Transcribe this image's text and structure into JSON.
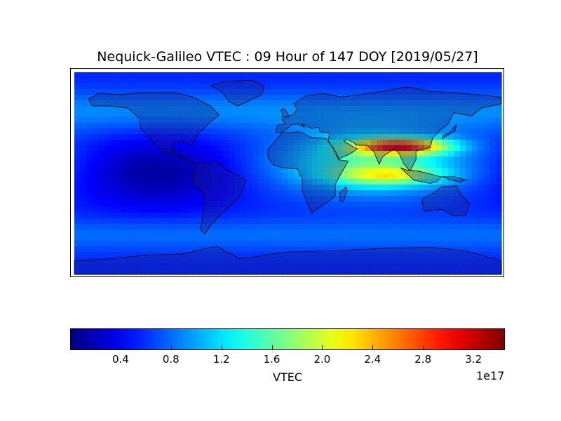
{
  "title": "Nequick-Galileo VTEC : 09 Hour of 147 DOY [2019/05/27]",
  "colormap": "jet",
  "colorbar": {
    "label": "VTEC",
    "exponent_label": "1e17",
    "tick_labels": [
      "0.4",
      "0.8",
      "1.2",
      "1.6",
      "2.0",
      "2.4",
      "2.8",
      "3.2"
    ],
    "tick_values": [
      0.4,
      0.8,
      1.2,
      1.6,
      2.0,
      2.4,
      2.8,
      3.2
    ],
    "range": [
      0.0,
      3.45
    ]
  },
  "map": {
    "projection": "equirectangular",
    "lon_range": [
      -180,
      180
    ],
    "lat_range": [
      -90,
      90
    ],
    "field_description": "VTEC grid, peak near 20-30N 40-150E"
  }
}
